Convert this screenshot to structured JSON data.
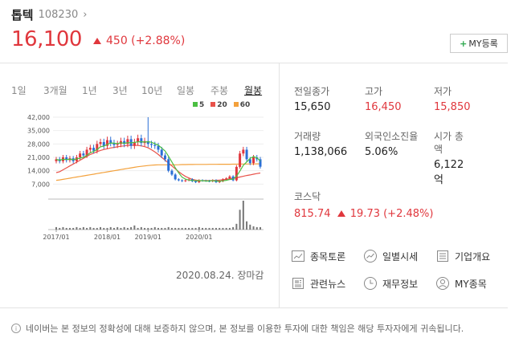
{
  "stock": {
    "name": "톱텍",
    "code": "108230",
    "price": "16,100",
    "change": "450 (+2.88%)",
    "my_button": "MY등록"
  },
  "tabs": [
    {
      "label": "1일"
    },
    {
      "label": "3개월"
    },
    {
      "label": "1년"
    },
    {
      "label": "3년"
    },
    {
      "label": "10년"
    },
    {
      "label": "일봉"
    },
    {
      "label": "주봉"
    },
    {
      "label": "월봉",
      "active": true
    }
  ],
  "chart_data": {
    "type": "candlestick",
    "yticks": [
      "42,000",
      "35,000",
      "28,000",
      "21,000",
      "14,000",
      "7,000"
    ],
    "ylim": [
      0,
      42000
    ],
    "xticks": [
      "2017/01",
      "2018/01",
      "2019/01",
      "2020/01"
    ],
    "legend": [
      {
        "label": "5",
        "color": "#4bbf42"
      },
      {
        "label": "20",
        "color": "#e8524a"
      },
      {
        "label": "60",
        "color": "#f3a13c"
      }
    ],
    "closes": [
      20000,
      19000,
      21000,
      19500,
      20500,
      19000,
      21000,
      23000,
      22000,
      25000,
      26000,
      24500,
      28000,
      29000,
      27000,
      30000,
      28500,
      27500,
      28000,
      29500,
      28000,
      30500,
      27000,
      29000,
      31000,
      28500,
      29500,
      28000,
      27500,
      27000,
      25000,
      22000,
      20000,
      14000,
      12000,
      9500,
      9000,
      8600,
      9000,
      9500,
      8500,
      8000,
      9000,
      8800,
      8700,
      8500,
      9000,
      8000,
      8500,
      9500,
      10000,
      11000,
      9000,
      16000,
      23000,
      25000,
      20000,
      18000,
      21000,
      20000,
      16100
    ],
    "ma20": [
      13000,
      13500,
      14500,
      15500,
      16500,
      17500,
      18500,
      19500,
      20500,
      21500,
      22500,
      23200,
      24000,
      24600,
      25100,
      25500,
      25900,
      26200,
      26500,
      26800,
      27000,
      27200,
      27300,
      27300,
      27200,
      27000,
      26600,
      26000,
      25000,
      23800,
      22500,
      21000,
      19500,
      18000,
      16500,
      15000,
      13500,
      12200,
      11000,
      10200,
      9500,
      9100,
      8900,
      8800,
      8800,
      8800,
      8900,
      9000,
      9100,
      9300,
      9500,
      9800,
      10000,
      10300,
      10700,
      11100,
      11500,
      11800,
      12200,
      12500,
      12800
    ],
    "ma60": [
      9000,
      9200,
      9500,
      9800,
      10100,
      10400,
      10700,
      11000,
      11300,
      11600,
      11900,
      12200,
      12500,
      12800,
      13100,
      13400,
      13700,
      14000,
      14300,
      14600,
      14900,
      15200,
      15500,
      15800,
      16100,
      16300,
      16500,
      16700,
      16900,
      17000,
      17100,
      17100,
      17100,
      17100,
      17100,
      17100,
      17150,
      17200,
      17200,
      17250,
      17250,
      17300,
      17300,
      17300,
      17300,
      17350,
      17350,
      17350,
      17400,
      17400,
      17400,
      17400,
      17450,
      17450,
      17500,
      17500,
      17500,
      17550,
      17550,
      17600,
      17600
    ],
    "volumes": [
      3,
      2,
      3,
      2,
      2,
      2,
      3,
      2,
      3,
      2,
      3,
      2,
      2,
      3,
      2,
      2,
      3,
      2,
      3,
      2,
      3,
      2,
      3,
      5,
      2,
      3,
      2,
      2,
      2,
      3,
      2,
      2,
      2,
      3,
      2,
      2,
      2,
      2,
      2,
      2,
      2,
      2,
      3,
      2,
      2,
      2,
      2,
      2,
      2,
      2,
      2,
      2,
      3,
      7,
      24,
      35,
      10,
      6,
      4,
      3,
      3
    ],
    "spikes": {
      "27": 42000
    }
  },
  "date": "2020.08.24. 장마감",
  "stats": [
    {
      "label": "전일종가",
      "value": "15,650"
    },
    {
      "label": "고가",
      "value": "16,450",
      "red": true
    },
    {
      "label": "저가",
      "value": "15,850",
      "red": true
    },
    {
      "label": "거래량",
      "value": "1,138,066"
    },
    {
      "label": "외국인소진율",
      "value": "5.06%"
    },
    {
      "label": "시가 총액",
      "value": "6,122억"
    }
  ],
  "kosdaq": {
    "label": "코스닥",
    "value": "815.74",
    "change": "19.73 (+2.48%)"
  },
  "links": [
    {
      "label": "종목토론",
      "icon": "discussion-icon"
    },
    {
      "label": "일별시세",
      "icon": "trend-icon"
    },
    {
      "label": "기업개요",
      "icon": "list-icon"
    },
    {
      "label": "관련뉴스",
      "icon": "news-icon"
    },
    {
      "label": "재무정보",
      "icon": "clock-icon"
    },
    {
      "label": "MY종목",
      "icon": "user-icon"
    }
  ],
  "notice": "네이버는 본 정보의 정확성에 대해 보증하지 않으며, 본 정보를 이용한 투자에 대한 책임은 해당 투자자에게 귀속됩니다."
}
